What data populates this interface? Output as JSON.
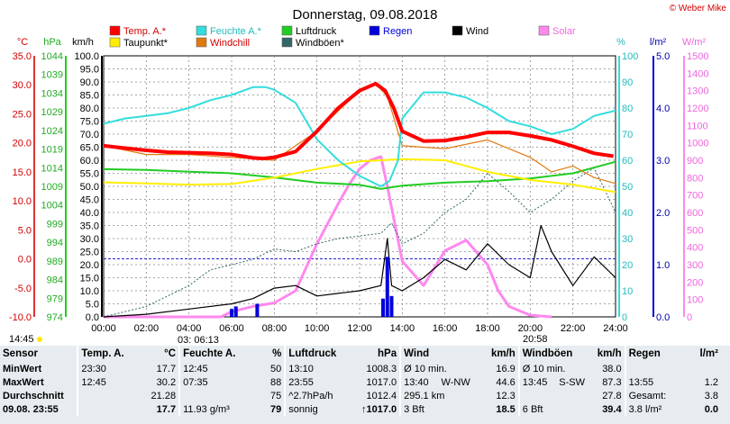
{
  "title": "Donnerstag, 09.08.2018",
  "copyright": "© Weber Mike",
  "legend": [
    {
      "label": "Temp. A.*",
      "color": "#ff0000"
    },
    {
      "label": "Feuchte A.*",
      "color": "#33dddd"
    },
    {
      "label": "Luftdruck",
      "color": "#22cc22"
    },
    {
      "label": "Regen",
      "color": "#0000dd"
    },
    {
      "label": "Wind",
      "color": "#000000"
    },
    {
      "label": "Solar",
      "color": "#ff88ee"
    },
    {
      "label": "Taupunkt*",
      "color": "#ffee00"
    },
    {
      "label": "Windchill",
      "color": "#e07a10"
    },
    {
      "label": "Windböen*",
      "color": "#336666"
    }
  ],
  "axis_units": {
    "temp": "°C",
    "press": "hPa",
    "wind": "km/h",
    "hum": "%",
    "rain": "l/m²",
    "solar": "W/m²"
  },
  "sun": {
    "rise_label": "14:45",
    "rise_time": "06:13",
    "set_time": "20:58",
    "mark": "03"
  },
  "chart_data": {
    "type": "line",
    "title": "Donnerstag, 09.08.2018",
    "x_ticks": [
      "00:00",
      "02:00",
      "04:00",
      "06:00",
      "08:00",
      "10:00",
      "12:00",
      "14:00",
      "16:00",
      "18:00",
      "20:00",
      "22:00",
      "24:00"
    ],
    "axes": {
      "temp": {
        "ticks": [
          35.0,
          30.0,
          25.0,
          20.0,
          15.0,
          10.0,
          5.0,
          0.0,
          -5.0,
          -10.0
        ],
        "range": [
          -10,
          35
        ]
      },
      "press": {
        "ticks": [
          1044,
          1039,
          1034,
          1029,
          1024,
          1019,
          1014,
          1009,
          1004,
          999,
          994,
          989,
          984,
          979,
          974
        ],
        "range": [
          974,
          1044
        ]
      },
      "wind": {
        "ticks": [
          100.0,
          95.0,
          90.0,
          85.0,
          80.0,
          75.0,
          70.0,
          65.0,
          60.0,
          55.0,
          50.0,
          45.0,
          40.0,
          35.0,
          30.0,
          25.0,
          20.0,
          15.0,
          10.0,
          5.0,
          0.0
        ],
        "range": [
          0,
          100
        ]
      },
      "hum": {
        "ticks": [
          100,
          90,
          80,
          70,
          60,
          50,
          40,
          30,
          20,
          10,
          0
        ],
        "range": [
          0,
          100
        ]
      },
      "rain": {
        "ticks": [
          5.0,
          4.0,
          3.0,
          2.0,
          1.0,
          0.0
        ],
        "range": [
          0,
          5
        ]
      },
      "solar": {
        "ticks": [
          1500,
          1400,
          1300,
          1200,
          1100,
          1000,
          900,
          800,
          700,
          600,
          500,
          400,
          300,
          200,
          100,
          0
        ],
        "range": [
          0,
          1500
        ]
      }
    },
    "series": [
      {
        "name": "Temp. A.*",
        "axis": "temp",
        "color": "#ff0000",
        "x": [
          0,
          1,
          2,
          3,
          4,
          5,
          6,
          7,
          7.5,
          8,
          9,
          10,
          11,
          12,
          12.75,
          13.2,
          13.6,
          14,
          15,
          16,
          17,
          18,
          19,
          20,
          21,
          22,
          23,
          23.9
        ],
        "y": [
          19.5,
          19.1,
          18.7,
          18.4,
          18.3,
          18.2,
          18.0,
          17.4,
          17.3,
          17.5,
          18.5,
          22.0,
          26.0,
          29.0,
          30.2,
          29.0,
          26.0,
          22.0,
          20.3,
          20.4,
          21.0,
          21.8,
          21.8,
          21.2,
          20.5,
          19.4,
          18.2,
          17.7
        ]
      },
      {
        "name": "Feuchte A.*",
        "axis": "hum",
        "color": "#33dddd",
        "x": [
          0,
          1,
          2,
          3,
          4,
          5,
          6,
          7,
          7.6,
          8,
          9,
          10,
          11,
          12,
          12.5,
          13,
          13.4,
          13.8,
          14,
          15,
          16,
          17,
          18,
          19,
          20,
          21,
          22,
          23,
          24
        ],
        "y": [
          74,
          76,
          77,
          78,
          80,
          83,
          85,
          88,
          88,
          87,
          82,
          68,
          60,
          54,
          52,
          50,
          52,
          60,
          76,
          86,
          86,
          84,
          80,
          75,
          73,
          70,
          72,
          77,
          79
        ]
      },
      {
        "name": "Luftdruck",
        "axis": "press",
        "color": "#22cc22",
        "x": [
          0,
          2,
          4,
          6,
          8,
          10,
          12,
          13,
          14,
          16,
          18,
          20,
          22,
          24
        ],
        "y": [
          1013.6,
          1013.4,
          1012.9,
          1012.5,
          1011.4,
          1010.0,
          1009.4,
          1008.3,
          1009.2,
          1010.0,
          1010.4,
          1011.1,
          1012.5,
          1015.6
        ]
      },
      {
        "name": "Taupunkt*",
        "axis": "temp",
        "color": "#ffee00",
        "x": [
          0,
          2,
          4,
          6,
          8,
          10,
          12,
          14,
          16,
          18,
          20,
          22,
          24
        ],
        "y": [
          13.2,
          13.0,
          12.8,
          12.9,
          14.0,
          15.5,
          16.8,
          17.2,
          17.0,
          15.0,
          13.6,
          12.8,
          11.5
        ]
      },
      {
        "name": "Windchill",
        "axis": "temp",
        "color": "#e07a10",
        "x": [
          0,
          2,
          4,
          6,
          8,
          10,
          12,
          12.75,
          13.3,
          14,
          16,
          18,
          20,
          21,
          22,
          23,
          24
        ],
        "y": [
          19.5,
          18.0,
          18.0,
          17.5,
          17.0,
          22.0,
          29.0,
          30.2,
          28.0,
          19.5,
          19.0,
          20.5,
          17.5,
          15.0,
          16.0,
          14.0,
          13.0
        ]
      },
      {
        "name": "Windböen*",
        "axis": "wind",
        "color": "#336666",
        "x": [
          0,
          2,
          4,
          5,
          6,
          7,
          8,
          9,
          10,
          11,
          12,
          13,
          13.5,
          14,
          15,
          16,
          17,
          18,
          19,
          20,
          21,
          22,
          23,
          24
        ],
        "y": [
          0,
          4,
          12,
          18,
          20,
          22,
          26,
          25,
          28,
          30,
          31,
          32,
          36,
          28,
          32,
          40,
          45,
          55,
          48,
          40,
          45,
          52,
          57,
          40
        ]
      },
      {
        "name": "Wind",
        "axis": "wind",
        "color": "#000000",
        "x": [
          0,
          2,
          4,
          6,
          7,
          8,
          9,
          10,
          11,
          12,
          13,
          13.3,
          13.5,
          14,
          15,
          16,
          17,
          18,
          19,
          20,
          20.5,
          21,
          22,
          23,
          24
        ],
        "y": [
          0,
          1,
          3,
          5,
          7,
          11,
          12,
          8,
          9,
          10,
          12,
          30,
          12,
          10,
          15,
          22,
          18,
          28,
          20,
          15,
          35,
          25,
          12,
          23,
          15
        ]
      },
      {
        "name": "Solar",
        "axis": "solar",
        "color": "#ff88ee",
        "x": [
          0,
          5.5,
          6,
          7,
          8,
          9,
          10,
          11,
          11.5,
          12,
          12.5,
          13,
          13.3,
          14,
          15,
          16,
          17,
          18,
          18.5,
          19,
          20,
          21
        ],
        "y": [
          0,
          0,
          30,
          60,
          80,
          150,
          420,
          650,
          760,
          850,
          900,
          920,
          750,
          320,
          180,
          380,
          440,
          300,
          150,
          60,
          10,
          0
        ]
      },
      {
        "name": "Regen",
        "axis": "rain",
        "color": "#0000dd",
        "type": "bar",
        "x": [
          6.0,
          6.2,
          7.2,
          13.1,
          13.3,
          13.5
        ],
        "y": [
          0.15,
          0.2,
          0.25,
          0.35,
          1.15,
          0.4
        ]
      }
    ]
  },
  "stats": {
    "headers": {
      "sensor": "Sensor",
      "temp": "Temp. A.",
      "temp_u": "°C",
      "hum": "Feuchte A.",
      "hum_u": "%",
      "press": "Luftdruck",
      "press_u": "hPa",
      "wind": "Wind",
      "wind_u": "km/h",
      "gust": "Windböen",
      "gust_u": "km/h",
      "rain": "Regen",
      "rain_u": "l/m²"
    },
    "min": {
      "label": "MinWert",
      "temp_t": "23:30",
      "temp_v": "17.7",
      "hum_t": "12:45",
      "hum_v": "50",
      "press_t": "13:10",
      "press_v": "1008.3",
      "wind_t": "Ø 10 min.",
      "wind_v": "16.9",
      "gust_t": "Ø 10 min.",
      "gust_v": "38.0"
    },
    "max": {
      "label": "MaxWert",
      "temp_t": "12:45",
      "temp_v": "30.2",
      "hum_t": "07:35",
      "hum_v": "88",
      "press_t": "23:55",
      "press_v": "1017.0",
      "wind_t": "13:40",
      "wind_dir": "W-NW",
      "wind_v": "44.6",
      "gust_t": "13:45",
      "gust_dir": "S-SW",
      "gust_v": "87.3",
      "rain_t": "13:55",
      "rain_v": "1.2"
    },
    "avg": {
      "label": "Durchschnitt",
      "temp_v": "21.28",
      "hum_v": "75",
      "press_t": "^2.7hPa/h",
      "press_v": "1012.4",
      "wind_t": "295.1 km",
      "wind_v": "12.3",
      "gust_v": "27.8",
      "rain_t": "Gesamt:",
      "rain_v": "3.8"
    },
    "current": {
      "label": "09.08. 23:55",
      "temp_v": "17.7",
      "hum_t": "11.93 g/m³",
      "hum_v": "79",
      "press_t": "sonnig",
      "press_v": "↑1017.0",
      "wind_t": "3 Bft",
      "wind_v": "18.5",
      "gust_t": "6 Bft",
      "gust_v": "39.4",
      "rain_t": "3.8 l/m²",
      "rain_v": "0.0"
    }
  }
}
